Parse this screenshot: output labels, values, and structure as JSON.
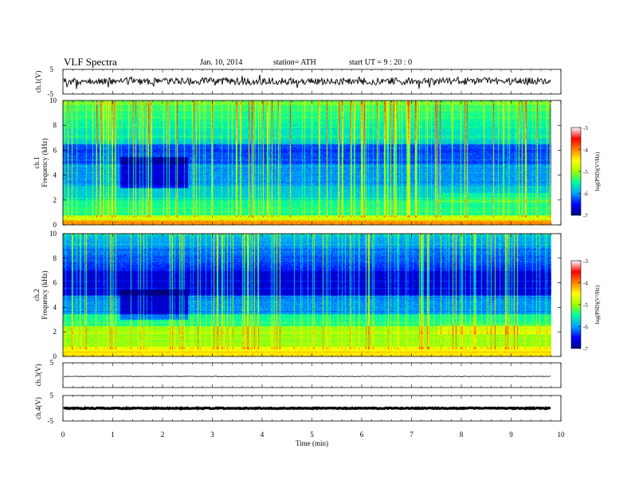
{
  "header": {
    "title": "VLF  Spectra",
    "date": "Jan. 10, 2014",
    "station": "station= ATH",
    "start": "start  UT =   9 : 20 : 0"
  },
  "chart_data": [
    {
      "type": "line",
      "name": "ch.1 waveform",
      "ylabel": "ch.1(V)",
      "ylim": [
        -5,
        5
      ],
      "yticks": [
        "5",
        "-5"
      ],
      "x_range": [
        0,
        9.8
      ],
      "level": 0.2
    },
    {
      "type": "heatmap",
      "name": "ch.1 spectrogram",
      "ylabel": "ch.1\nFrequency  (kHz)",
      "ylim": [
        0,
        10
      ],
      "yticks": [
        "0",
        "2",
        "4",
        "6",
        "8",
        "10"
      ],
      "colorbar": {
        "label": "log(PSD)(V²/Hz)",
        "range": [
          -7,
          -3
        ],
        "ticks": [
          "-3",
          "-4",
          "-5",
          "-6",
          "-7"
        ],
        "colors": [
          "#000080",
          "#0000ff",
          "#00a0ff",
          "#00ffa0",
          "#a0ff00",
          "#ffff00",
          "#ff8000",
          "#ff0000",
          "#ffffff"
        ]
      }
    },
    {
      "type": "heatmap",
      "name": "ch.2 spectrogram",
      "ylabel": "ch.2\nFrequency  (kHz)",
      "ylim": [
        0,
        10
      ],
      "yticks": [
        "0",
        "2",
        "4",
        "6",
        "8",
        "10"
      ],
      "colorbar": {
        "label": "log(PSD)(V²/Hz)",
        "range": [
          -7,
          -3
        ],
        "ticks": [
          "-3",
          "-4",
          "-5",
          "-6",
          "-7"
        ]
      }
    },
    {
      "type": "line",
      "name": "ch.3 waveform",
      "ylabel": "ch.3(V)",
      "ylim": [
        -5,
        5
      ],
      "yticks": [
        "5"
      ],
      "level": -0.5
    },
    {
      "type": "line",
      "name": "ch.4 waveform",
      "ylabel": "ch.4(V)",
      "ylim": [
        -5,
        5
      ],
      "yticks": [
        "5",
        "-5"
      ],
      "level": 0
    }
  ],
  "xaxis": {
    "label": "Time  (min)",
    "xlim": [
      0,
      10
    ],
    "ticks": [
      "0",
      "1",
      "2",
      "3",
      "4",
      "5",
      "6",
      "7",
      "8",
      "9",
      "10"
    ]
  }
}
